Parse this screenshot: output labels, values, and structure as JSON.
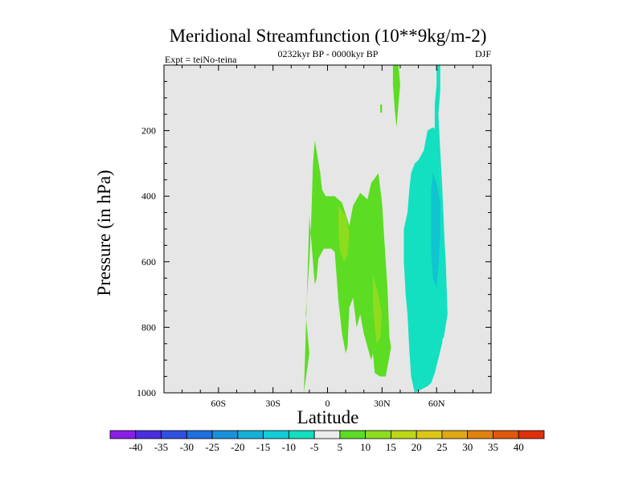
{
  "chart_data": {
    "type": "heatmap",
    "title": "Meridional Streamfunction (10**9kg/m-2)",
    "subtitle_left": "Expt = teiNo-teina",
    "subtitle_center": "0232kyr BP - 0000kyr BP",
    "subtitle_right": "DJF",
    "xlabel": "Latitude",
    "ylabel": "Pressure (in hPa)",
    "xlim": [
      -90,
      90
    ],
    "ylim": [
      1000,
      0
    ],
    "xticks": [
      {
        "value": -60,
        "label": "60S"
      },
      {
        "value": -30,
        "label": "30S"
      },
      {
        "value": 0,
        "label": "0"
      },
      {
        "value": 30,
        "label": "30N"
      },
      {
        "value": 60,
        "label": "60N"
      }
    ],
    "yticks": [
      {
        "value": 200,
        "label": "200"
      },
      {
        "value": 400,
        "label": "400"
      },
      {
        "value": 600,
        "label": "600"
      },
      {
        "value": 800,
        "label": "800"
      },
      {
        "value": 1000,
        "label": "1000"
      }
    ],
    "background_color": "#e6e6e6",
    "colorbar": {
      "levels": [
        "-40",
        "-35",
        "-30",
        "-25",
        "-20",
        "-15",
        "-10",
        "-5",
        "5",
        "10",
        "15",
        "20",
        "25",
        "30",
        "35",
        "40"
      ],
      "colors": [
        "#8a1ee6",
        "#4a2ee0",
        "#2f50e0",
        "#1f6fe0",
        "#1990dc",
        "#14b0d8",
        "#10cdd8",
        "#12e0c0",
        "#ebebeb",
        "#5cdc22",
        "#8edc1e",
        "#bcd618",
        "#dcc814",
        "#e0a812",
        "#e0820e",
        "#e0580c",
        "#e0300a"
      ]
    },
    "regions": [
      {
        "label": "positive 5-10",
        "color": "#5cdc22",
        "points": [
          [
            -13,
            1000
          ],
          [
            -10,
            880
          ],
          [
            -12,
            760
          ],
          [
            -10,
            600
          ],
          [
            -9,
            480
          ],
          [
            -8,
            300
          ],
          [
            -7,
            230
          ],
          [
            -4,
            330
          ],
          [
            -3,
            380
          ],
          [
            -1,
            400
          ],
          [
            4,
            400
          ],
          [
            8,
            420
          ],
          [
            12,
            490
          ],
          [
            14,
            430
          ],
          [
            18,
            390
          ],
          [
            22,
            410
          ],
          [
            24,
            360
          ],
          [
            28,
            330
          ],
          [
            30,
            420
          ],
          [
            32,
            600
          ],
          [
            33,
            680
          ],
          [
            34,
            830
          ],
          [
            35,
            860
          ],
          [
            32,
            950
          ],
          [
            29,
            950
          ],
          [
            26,
            940
          ],
          [
            25,
            880
          ],
          [
            24,
            900
          ],
          [
            20,
            820
          ],
          [
            18,
            760
          ],
          [
            16,
            800
          ],
          [
            14,
            710
          ],
          [
            12,
            740
          ],
          [
            11,
            860
          ],
          [
            10,
            880
          ],
          [
            8,
            820
          ],
          [
            6,
            720
          ],
          [
            4,
            570
          ],
          [
            2,
            560
          ],
          [
            -2,
            560
          ],
          [
            -5,
            590
          ],
          [
            -6,
            650
          ],
          [
            -7,
            670
          ],
          [
            -8,
            600
          ],
          [
            -10,
            460
          ]
        ]
      },
      {
        "label": "positive 10-15",
        "color": "#8edc1e",
        "points": [
          [
            6,
            430
          ],
          [
            10,
            460
          ],
          [
            12,
            510
          ],
          [
            11,
            580
          ],
          [
            9,
            600
          ],
          [
            7,
            570
          ],
          [
            6,
            510
          ]
        ]
      },
      {
        "label": "positive 10-15 lower",
        "color": "#8edc1e",
        "points": [
          [
            25,
            640
          ],
          [
            28,
            700
          ],
          [
            30,
            760
          ],
          [
            29,
            830
          ],
          [
            27,
            850
          ],
          [
            26,
            800
          ],
          [
            25,
            740
          ]
        ]
      },
      {
        "label": "positive upper jet",
        "color": "#5cdc22",
        "points": [
          [
            36,
            0
          ],
          [
            39,
            0
          ],
          [
            40,
            60
          ],
          [
            39,
            120
          ],
          [
            38,
            190
          ],
          [
            37,
            140
          ],
          [
            36,
            60
          ]
        ]
      },
      {
        "label": "positive upper sliver",
        "color": "#5cdc22",
        "points": [
          [
            29,
            120
          ],
          [
            30,
            120
          ],
          [
            30,
            145
          ],
          [
            29,
            145
          ]
        ]
      },
      {
        "label": "negative -10 to -5",
        "color": "#12e0c0",
        "points": [
          [
            48,
            1000
          ],
          [
            52,
            940
          ],
          [
            56,
            910
          ],
          [
            60,
            860
          ],
          [
            64,
            830
          ],
          [
            66,
            760
          ],
          [
            65,
            600
          ],
          [
            64,
            500
          ],
          [
            63,
            400
          ],
          [
            61,
            300
          ],
          [
            59,
            200
          ],
          [
            59,
            120
          ],
          [
            60,
            60
          ],
          [
            60,
            0
          ],
          [
            62,
            0
          ],
          [
            62,
            80
          ],
          [
            61,
            150
          ],
          [
            62,
            260
          ],
          [
            63,
            360
          ],
          [
            64,
            480
          ],
          [
            65,
            620
          ],
          [
            65,
            760
          ],
          [
            63,
            850
          ],
          [
            59,
            940
          ],
          [
            57,
            970
          ],
          [
            55,
            980
          ]
        ]
      },
      {
        "label": "negative -10 to -5 main",
        "color": "#12e0c0",
        "points": [
          [
            44,
            450
          ],
          [
            45,
            380
          ],
          [
            46,
            330
          ],
          [
            48,
            300
          ],
          [
            50,
            290
          ],
          [
            53,
            260
          ],
          [
            55,
            200
          ],
          [
            58,
            190
          ],
          [
            60,
            200
          ],
          [
            61,
            300
          ],
          [
            63,
            400
          ],
          [
            64,
            500
          ],
          [
            65,
            600
          ],
          [
            66,
            760
          ],
          [
            64,
            830
          ],
          [
            60,
            860
          ],
          [
            56,
            910
          ],
          [
            52,
            940
          ],
          [
            48,
            1000
          ],
          [
            46,
            950
          ],
          [
            45,
            870
          ],
          [
            44,
            760
          ],
          [
            43,
            700
          ],
          [
            42,
            600
          ],
          [
            42,
            500
          ]
        ]
      },
      {
        "label": "negative -15 to -10",
        "color": "#10c4d0",
        "points": [
          [
            58,
            330
          ],
          [
            60,
            360
          ],
          [
            62,
            420
          ],
          [
            62,
            520
          ],
          [
            61,
            620
          ],
          [
            60,
            680
          ],
          [
            58,
            650
          ],
          [
            57,
            560
          ],
          [
            57,
            460
          ],
          [
            57,
            380
          ]
        ]
      }
    ]
  }
}
